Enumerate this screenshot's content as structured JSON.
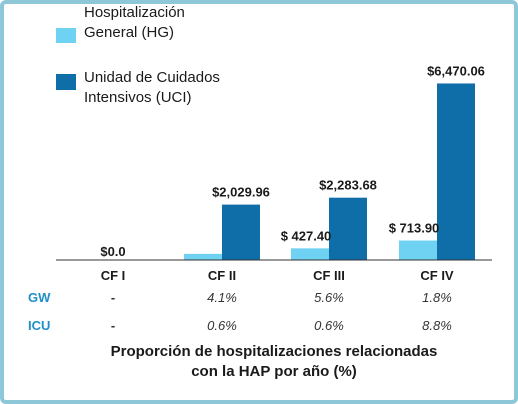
{
  "colors": {
    "hg": "#6fd2f2",
    "uci": "#0f6ea8",
    "row_label": "#1e8fc8",
    "frame": "#8ec8d8"
  },
  "legend": {
    "hg_line1": "Hospitalización",
    "hg_line2": "General (HG)",
    "uci_line1": "Unidad de Cuidados",
    "uci_line2": "Intensivos (UCI)"
  },
  "chart_data": {
    "type": "bar",
    "categories": [
      "CF I",
      "CF II",
      "CF III",
      "CF IV"
    ],
    "series": [
      {
        "name": "Hospitalización General (HG)",
        "values": [
          0,
          225,
          427.4,
          713.9
        ]
      },
      {
        "name": "Unidad de Cuidados Intensivos (UCI)",
        "values": [
          0,
          2029.96,
          2283.68,
          6470.06
        ]
      }
    ],
    "value_labels": [
      "$0.0",
      "$2,029.96",
      "$ 427.40",
      "$2,283.68",
      "$ 713.90",
      "$6,470.06"
    ],
    "ylim": [
      0,
      7000
    ],
    "legend_position": "top-left",
    "grid": false,
    "xlabel_line1": "Proporción de hospitalizaciones relacionadas",
    "xlabel_line2": "con la HAP por año (%)"
  },
  "table": {
    "rows": [
      {
        "label": "GW",
        "cells": [
          "-",
          "4.1%",
          "5.6%",
          "1.8%"
        ]
      },
      {
        "label": "ICU",
        "cells": [
          "-",
          "0.6%",
          "0.6%",
          "8.8%"
        ]
      }
    ]
  }
}
